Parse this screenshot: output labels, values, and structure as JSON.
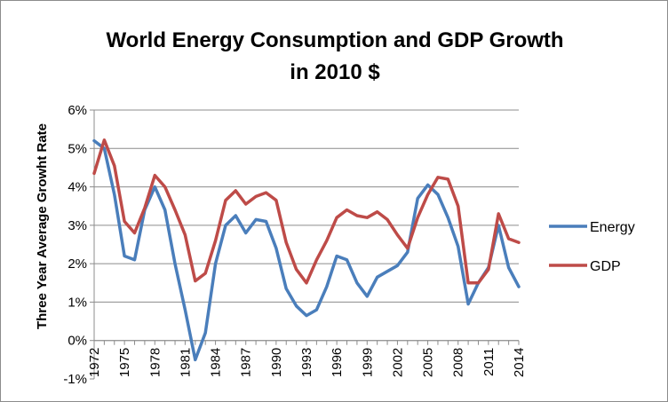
{
  "chart_data": {
    "type": "line",
    "title": [
      "World Energy Consumption and GDP Growth",
      "in 2010 $"
    ],
    "xlabel": "",
    "ylabel": "Three Year Average Growht Rate",
    "ylim": [
      -1,
      6
    ],
    "yticks": [
      "-1%",
      "0%",
      "1%",
      "2%",
      "3%",
      "4%",
      "5%",
      "6%"
    ],
    "xticks": [
      "1972",
      "1975",
      "1978",
      "1981",
      "1984",
      "1987",
      "1990",
      "1993",
      "1996",
      "1999",
      "2002",
      "2005",
      "2008",
      "2011",
      "2014"
    ],
    "grid": "horizontal",
    "legend_position": "right",
    "x": [
      1972,
      1973,
      1974,
      1975,
      1976,
      1977,
      1978,
      1979,
      1980,
      1981,
      1982,
      1983,
      1984,
      1985,
      1986,
      1987,
      1988,
      1989,
      1990,
      1991,
      1992,
      1993,
      1994,
      1995,
      1996,
      1997,
      1998,
      1999,
      2000,
      2001,
      2002,
      2003,
      2004,
      2005,
      2006,
      2007,
      2008,
      2009,
      2010,
      2011,
      2012,
      2013,
      2014
    ],
    "series": [
      {
        "name": "Energy",
        "color": "#4a7ebb",
        "values": [
          5.2,
          5.0,
          3.8,
          2.2,
          2.1,
          3.4,
          4.0,
          3.4,
          2.0,
          0.8,
          -0.5,
          0.2,
          2.0,
          3.0,
          3.25,
          2.8,
          3.15,
          3.1,
          2.4,
          1.35,
          0.9,
          0.65,
          0.8,
          1.4,
          2.2,
          2.1,
          1.5,
          1.15,
          1.65,
          1.8,
          1.95,
          2.3,
          3.7,
          4.05,
          3.8,
          3.2,
          2.45,
          0.95,
          1.5,
          1.9,
          3.0,
          1.9,
          1.4
        ]
      },
      {
        "name": "GDP",
        "color": "#be4b48",
        "values": [
          4.35,
          5.22,
          4.55,
          3.1,
          2.8,
          3.45,
          4.3,
          4.0,
          3.4,
          2.75,
          1.55,
          1.75,
          2.6,
          3.65,
          3.9,
          3.55,
          3.75,
          3.85,
          3.65,
          2.55,
          1.85,
          1.5,
          2.1,
          2.6,
          3.2,
          3.4,
          3.25,
          3.2,
          3.35,
          3.15,
          2.75,
          2.4,
          3.2,
          3.8,
          4.25,
          4.2,
          3.5,
          1.5,
          1.5,
          1.85,
          3.3,
          2.65,
          2.55
        ]
      }
    ]
  }
}
